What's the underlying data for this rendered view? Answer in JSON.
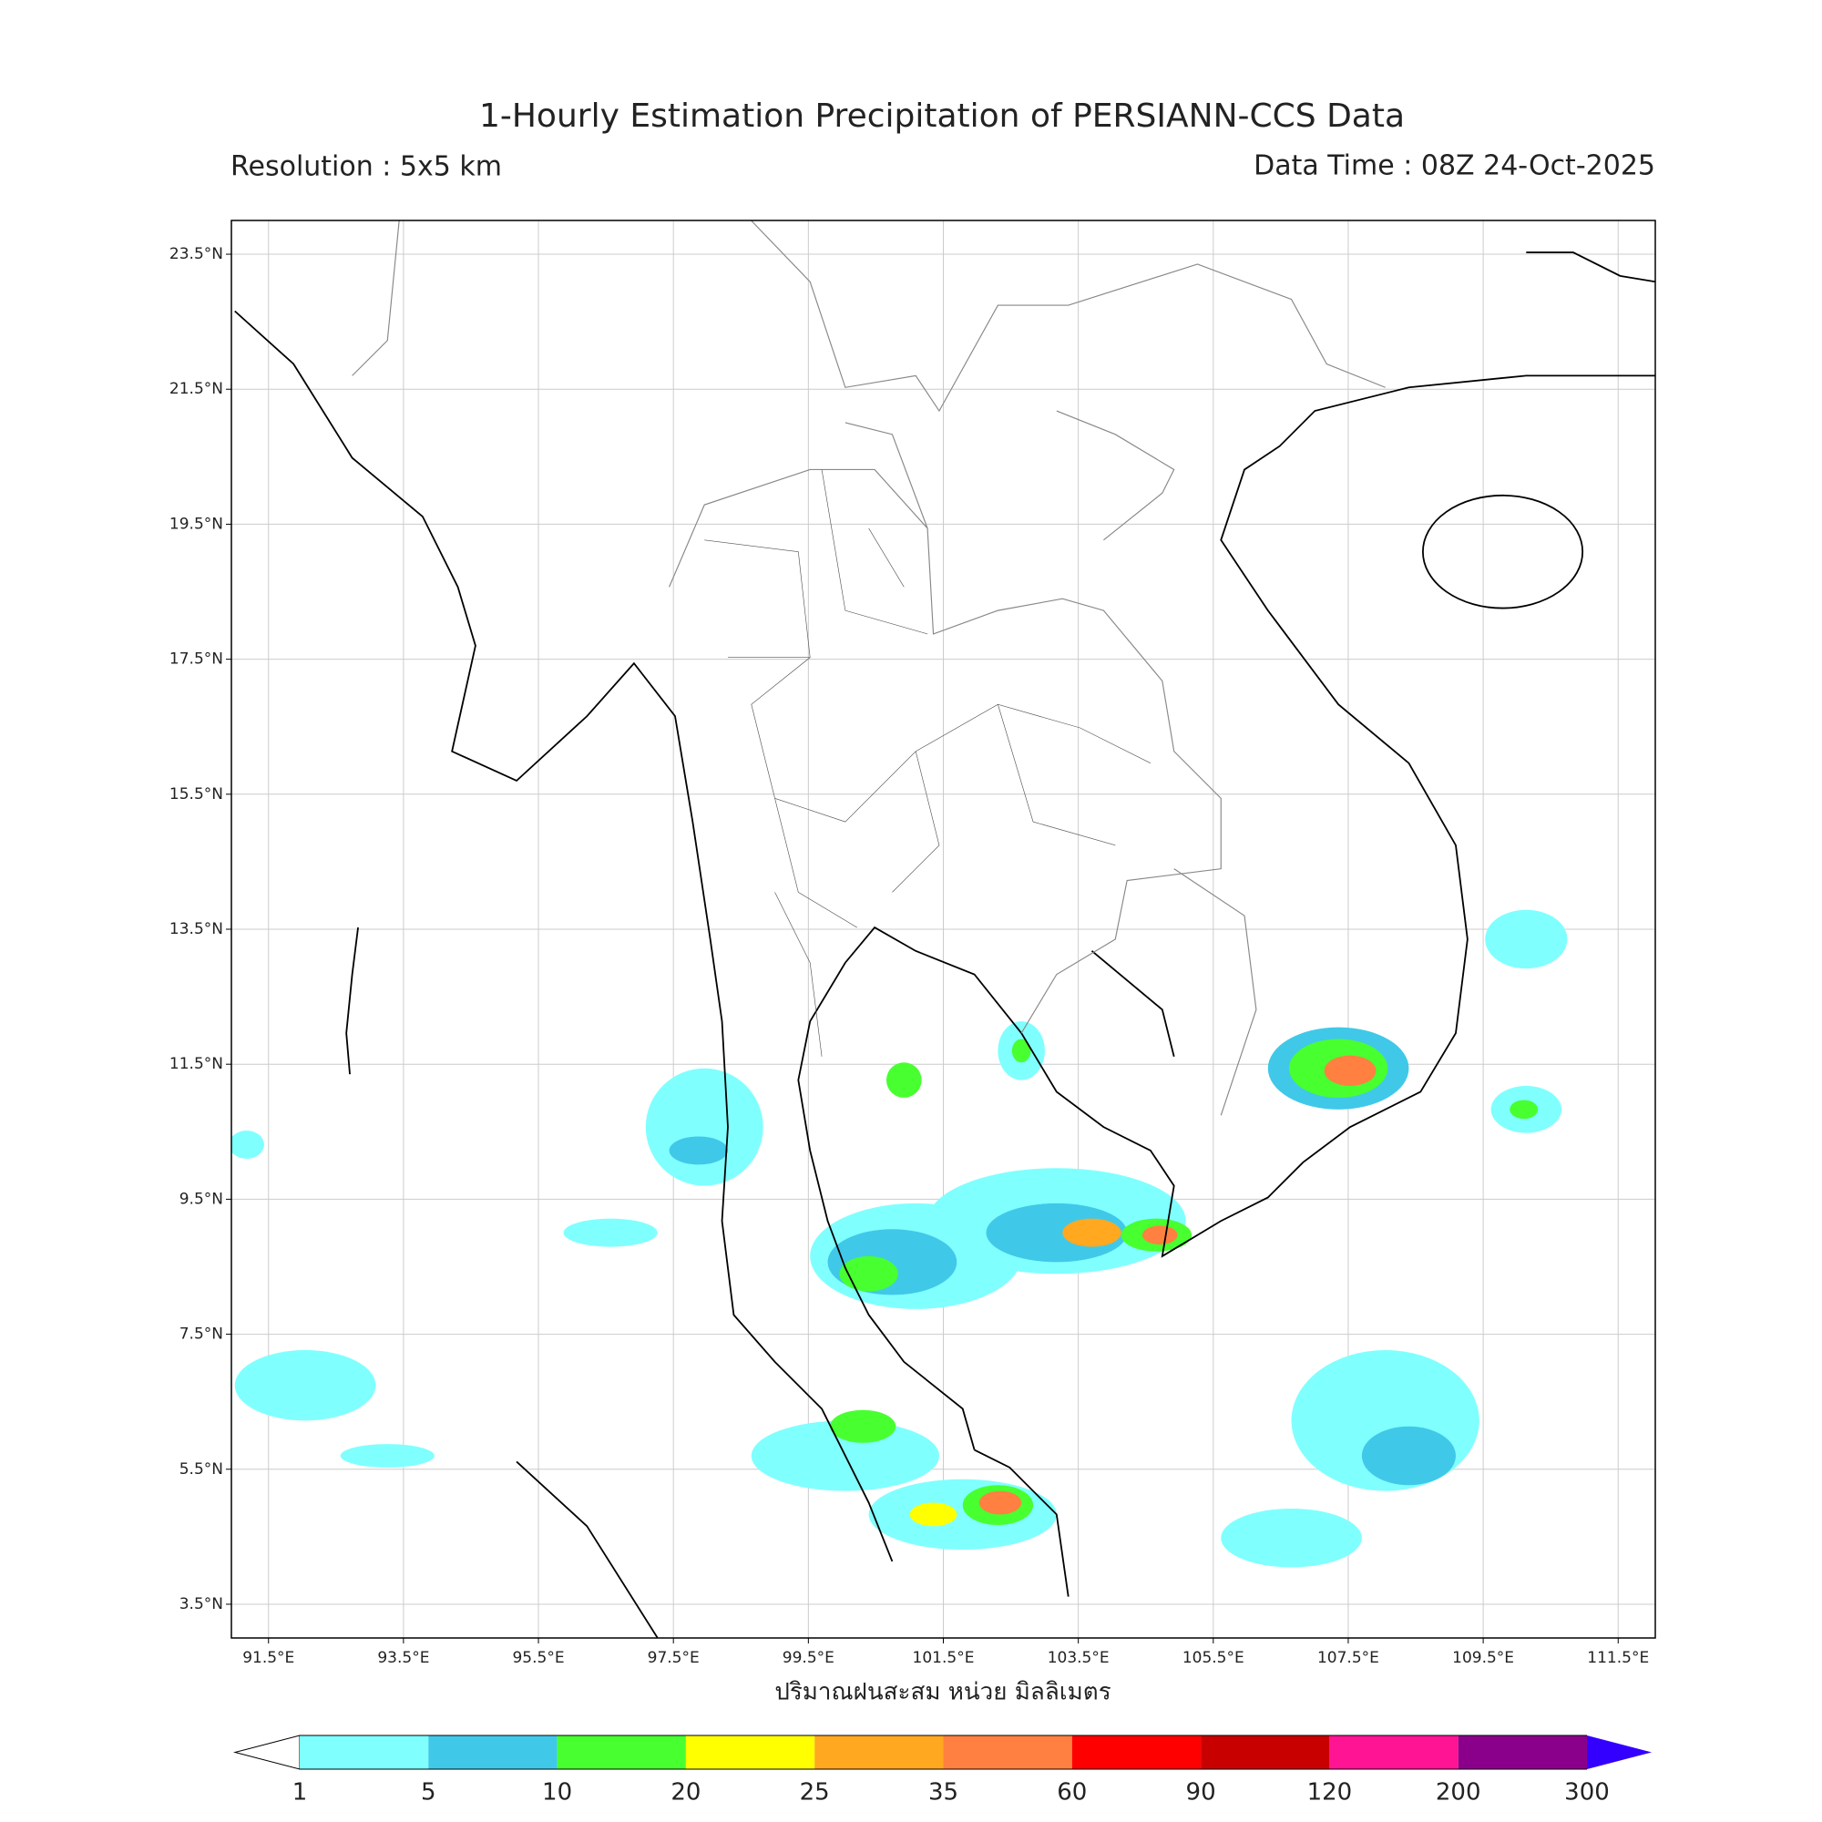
{
  "title": "1-Hourly Estimation Precipitation of PERSIANN-CCS Data",
  "resolution": "Resolution : 5x5 km",
  "data_time": "Data Time : 08Z 24-Oct-2025",
  "map": {
    "xlim": [
      90.95,
      112.05
    ],
    "ylim": [
      3.0,
      24.0
    ],
    "xticks": [
      {
        "value": 91.5,
        "label": "91.5°E"
      },
      {
        "value": 93.5,
        "label": "93.5°E"
      },
      {
        "value": 95.5,
        "label": "95.5°E"
      },
      {
        "value": 97.5,
        "label": "97.5°E"
      },
      {
        "value": 99.5,
        "label": "99.5°E"
      },
      {
        "value": 101.5,
        "label": "101.5°E"
      },
      {
        "value": 103.5,
        "label": "103.5°E"
      },
      {
        "value": 105.5,
        "label": "105.5°E"
      },
      {
        "value": 107.5,
        "label": "107.5°E"
      },
      {
        "value": 109.5,
        "label": "109.5°E"
      },
      {
        "value": 111.5,
        "label": "111.5°E"
      }
    ],
    "yticks": [
      {
        "value": 3.5,
        "label": "3.5°N"
      },
      {
        "value": 5.5,
        "label": "5.5°N"
      },
      {
        "value": 7.5,
        "label": "7.5°N"
      },
      {
        "value": 9.5,
        "label": "9.5°N"
      },
      {
        "value": 11.5,
        "label": "11.5°N"
      },
      {
        "value": 13.5,
        "label": "13.5°N"
      },
      {
        "value": 15.5,
        "label": "15.5°N"
      },
      {
        "value": 17.5,
        "label": "17.5°N"
      },
      {
        "value": 19.5,
        "label": "19.5°N"
      },
      {
        "value": 21.5,
        "label": "21.5°N"
      },
      {
        "value": 23.5,
        "label": "23.5°N"
      }
    ],
    "grid": true,
    "xlabel": "ปริมาณฝนสะสม หน่วย มิลลิเมตร"
  },
  "colorbar": {
    "bounds": [
      1,
      5,
      10,
      20,
      25,
      35,
      60,
      90,
      120,
      200,
      300
    ],
    "colors": [
      "#80ffff",
      "#40c8e8",
      "#48ff30",
      "#ffff00",
      "#ffa820",
      "#ff8040",
      "#ff0000",
      "#c80000",
      "#ff1493",
      "#8b008b"
    ],
    "under_color": "#ffffff",
    "over_color": "#3300ff"
  }
}
